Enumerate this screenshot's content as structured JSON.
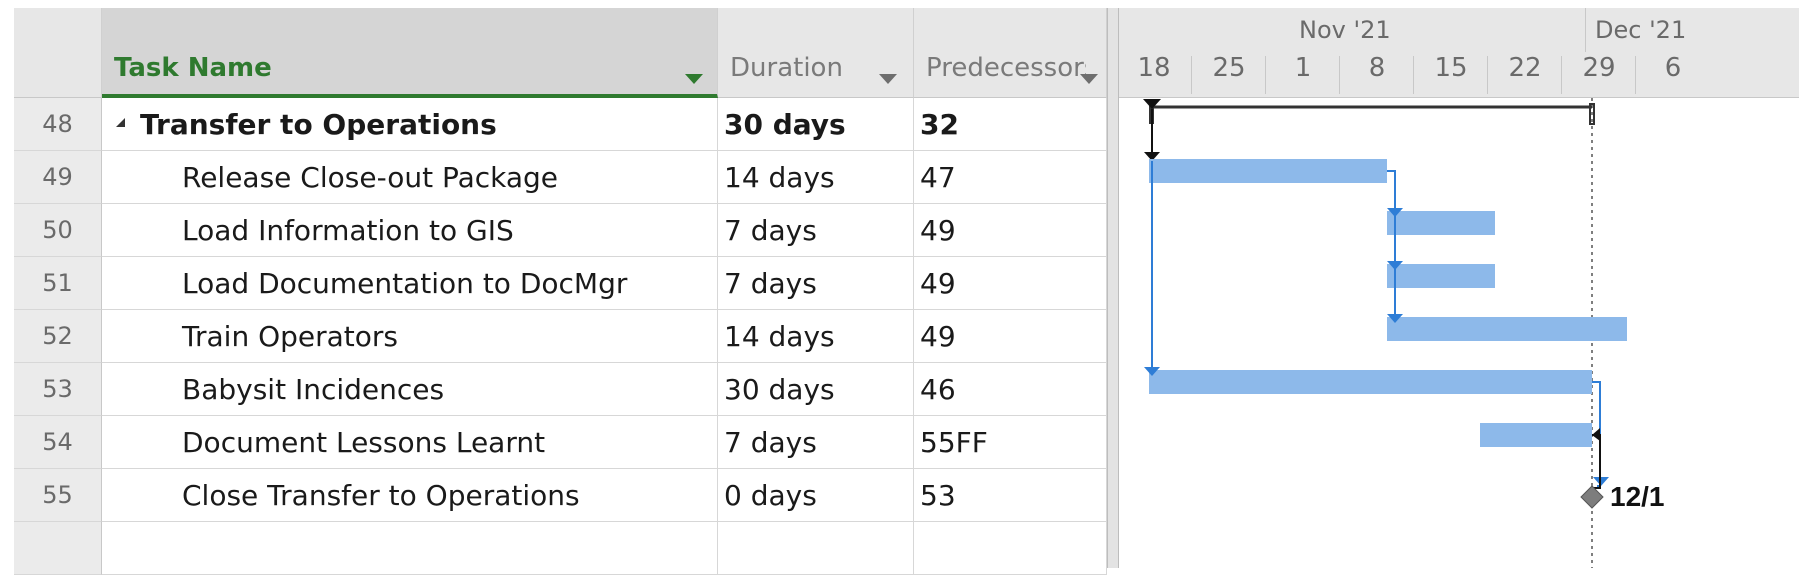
{
  "columns": {
    "row_num": "",
    "task_name": "Task Name",
    "duration": "Duration",
    "predecessors": "Predecessors"
  },
  "timescale": {
    "months": [
      "Nov '21",
      "Dec '21"
    ],
    "weeks": [
      "18",
      "25",
      "1",
      "8",
      "15",
      "22",
      "29",
      "6"
    ]
  },
  "tasks": [
    {
      "id": "48",
      "name": "Transfer to Operations",
      "duration": "30 days",
      "predecessors": "32",
      "summary": true
    },
    {
      "id": "49",
      "name": "Release Close-out Package",
      "duration": "14 days",
      "predecessors": "47"
    },
    {
      "id": "50",
      "name": "Load Information to GIS",
      "duration": "7 days",
      "predecessors": "49"
    },
    {
      "id": "51",
      "name": "Load Documentation to DocMgr",
      "duration": "7 days",
      "predecessors": "49"
    },
    {
      "id": "52",
      "name": "Train Operators",
      "duration": "14 days",
      "predecessors": "49"
    },
    {
      "id": "53",
      "name": "Babysit Incidences",
      "duration": "30 days",
      "predecessors": "46"
    },
    {
      "id": "54",
      "name": "Document Lessons Learnt",
      "duration": "7 days",
      "predecessors": "55FF"
    },
    {
      "id": "55",
      "name": "Close Transfer to Operations",
      "duration": "0 days",
      "predecessors": "53",
      "milestone": true
    }
  ],
  "milestone_label": "12/1",
  "colors": {
    "bar": "#8db9ea",
    "link": "#2e7dd6",
    "summary": "#333333",
    "header_accent": "#2f7a2f"
  }
}
